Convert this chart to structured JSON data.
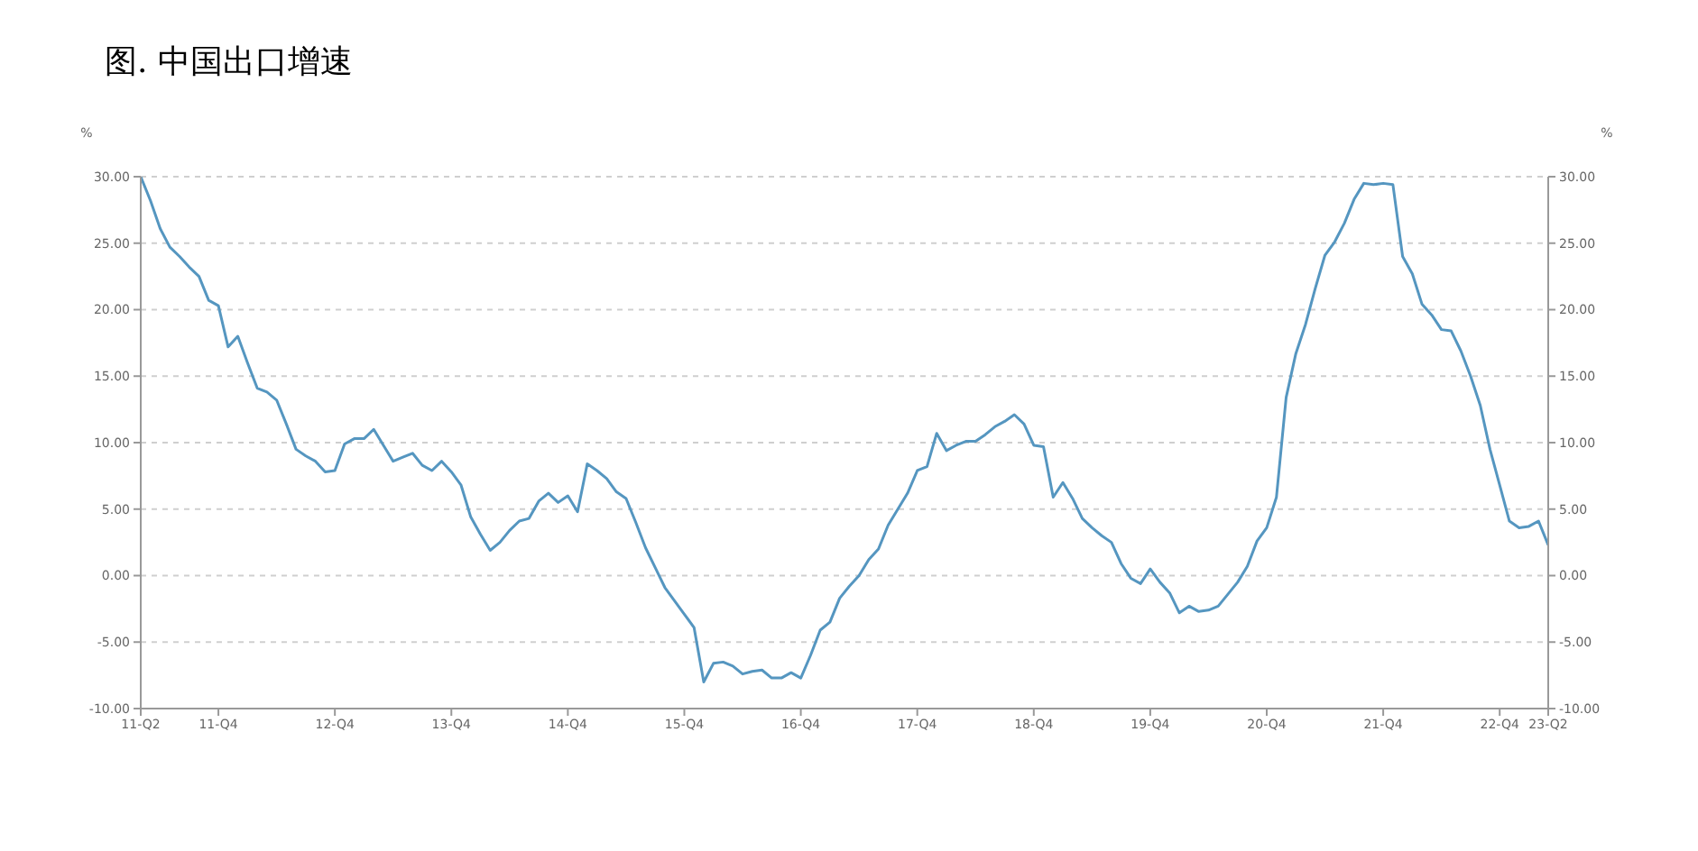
{
  "chart_data": {
    "type": "line",
    "title": "图. 中国出口增速",
    "ylabel": "%",
    "y2label": "%",
    "categories": [
      "11-Q2",
      null,
      null,
      null,
      null,
      null,
      null,
      null,
      "11-Q4",
      null,
      null,
      null,
      null,
      null,
      null,
      null,
      null,
      null,
      null,
      null,
      "12-Q4",
      null,
      null,
      null,
      null,
      null,
      null,
      null,
      null,
      null,
      null,
      null,
      "13-Q4",
      null,
      null,
      null,
      null,
      null,
      null,
      null,
      null,
      null,
      null,
      null,
      "14-Q4",
      null,
      null,
      null,
      null,
      null,
      null,
      null,
      null,
      null,
      null,
      null,
      "15-Q4",
      null,
      null,
      null,
      null,
      null,
      null,
      null,
      null,
      null,
      null,
      null,
      "16-Q4",
      null,
      null,
      null,
      null,
      null,
      null,
      null,
      null,
      null,
      null,
      null,
      "17-Q4",
      null,
      null,
      null,
      null,
      null,
      null,
      null,
      null,
      null,
      null,
      null,
      "18-Q4",
      null,
      null,
      null,
      null,
      null,
      null,
      null,
      null,
      null,
      null,
      null,
      "19-Q4",
      null,
      null,
      null,
      null,
      null,
      null,
      null,
      null,
      null,
      null,
      null,
      "20-Q4",
      null,
      null,
      null,
      null,
      null,
      null,
      null,
      null,
      null,
      null,
      null,
      "21-Q4",
      null,
      null,
      null,
      null,
      null,
      null,
      null,
      null,
      null,
      null,
      null,
      "22-Q4",
      null,
      null,
      null,
      null,
      "23-Q2"
    ],
    "series": [
      {
        "color": "#5596c0",
        "values": [
          30.0,
          28.2,
          26.1,
          24.7,
          24.0,
          23.2,
          22.5,
          20.7,
          20.3,
          17.2,
          18.0,
          16.0,
          14.1,
          13.8,
          13.2,
          11.4,
          9.5,
          9.0,
          8.6,
          7.8,
          7.9,
          9.9,
          10.3,
          10.3,
          11.0,
          9.8,
          8.6,
          8.9,
          9.2,
          8.3,
          7.9,
          8.6,
          7.8,
          6.8,
          4.4,
          3.1,
          1.9,
          2.5,
          3.4,
          4.1,
          4.3,
          5.6,
          6.2,
          5.5,
          6.0,
          4.8,
          8.4,
          7.9,
          7.3,
          6.3,
          5.8,
          4.0,
          2.1,
          0.6,
          -0.9,
          -1.9,
          -2.9,
          -3.9,
          -8.0,
          -6.6,
          -6.5,
          -6.8,
          -7.4,
          -7.2,
          -7.1,
          -7.7,
          -7.7,
          -7.3,
          -7.7,
          -6.0,
          -4.1,
          -3.5,
          -1.7,
          -0.8,
          0.0,
          1.2,
          2.0,
          3.8,
          5.0,
          6.2,
          7.9,
          8.2,
          10.7,
          9.4,
          9.8,
          10.1,
          10.1,
          10.6,
          11.2,
          11.6,
          12.1,
          11.4,
          9.8,
          9.7,
          5.9,
          7.0,
          5.8,
          4.3,
          3.6,
          3.0,
          2.5,
          0.9,
          -0.2,
          -0.6,
          0.5,
          -0.5,
          -1.3,
          -2.8,
          -2.3,
          -2.7,
          -2.6,
          -2.3,
          -1.4,
          -0.5,
          0.7,
          2.6,
          3.6,
          5.9,
          13.4,
          16.7,
          18.9,
          21.6,
          24.1,
          25.1,
          26.5,
          28.3,
          29.5,
          29.4,
          29.5,
          29.4,
          24.0,
          22.7,
          20.4,
          19.6,
          18.5,
          18.4,
          16.9,
          15.0,
          12.8,
          9.5,
          6.8,
          4.1,
          3.6,
          3.7,
          4.1,
          2.3
        ]
      }
    ],
    "ylim": [
      -10,
      30
    ],
    "yticks": [
      {
        "value": -10,
        "label": "-10.00"
      },
      {
        "value": -5,
        "label": "-5.00"
      },
      {
        "value": 0,
        "label": "0.00"
      },
      {
        "value": 5,
        "label": "5.00"
      },
      {
        "value": 10,
        "label": "10.00"
      },
      {
        "value": 15,
        "label": "15.00"
      },
      {
        "value": 20,
        "label": "20.00"
      },
      {
        "value": 25,
        "label": "25.00"
      },
      {
        "value": 30,
        "label": "30.00"
      }
    ],
    "y2lim": [
      -10,
      30
    ],
    "y2ticks": [
      {
        "value": -10,
        "label": "-10.00"
      },
      {
        "value": -5,
        "label": "-5.00"
      },
      {
        "value": 0,
        "label": "0.00"
      },
      {
        "value": 5,
        "label": "5.00"
      },
      {
        "value": 10,
        "label": "10.00"
      },
      {
        "value": 15,
        "label": "15.00"
      },
      {
        "value": 20,
        "label": "20.00"
      },
      {
        "value": 25,
        "label": "25.00"
      },
      {
        "value": 30,
        "label": "30.00"
      }
    ],
    "grid": "y",
    "marker": "none",
    "line_style": "solid"
  }
}
